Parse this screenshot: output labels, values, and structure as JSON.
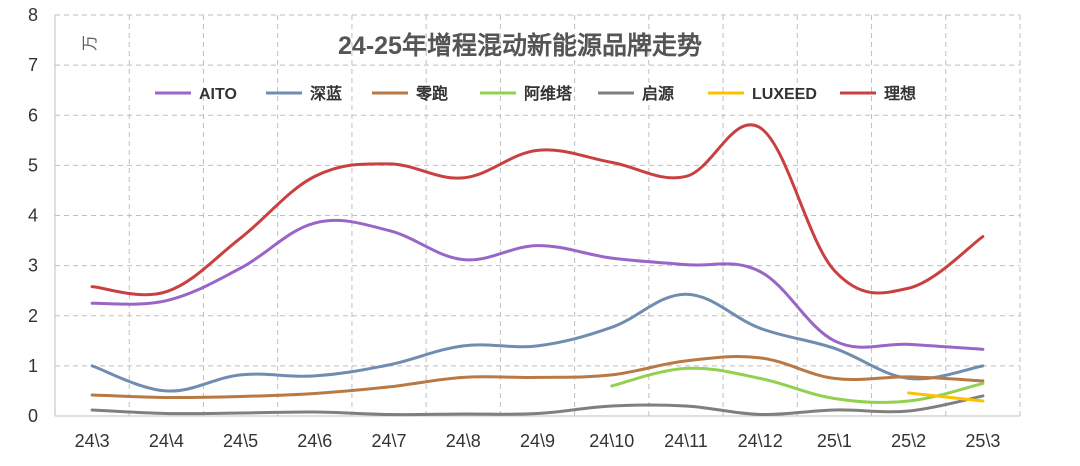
{
  "chart_data": {
    "type": "line",
    "title": "24-25年增程混动新能源品牌走势",
    "ylabel": "万",
    "ylim": [
      0,
      8
    ],
    "yticks": [
      "0",
      "1",
      "2",
      "3",
      "4",
      "5",
      "6",
      "7",
      "8"
    ],
    "grid": true,
    "legend_placement": "top-center",
    "categories": [
      "24\\3",
      "24\\4",
      "24\\5",
      "24\\6",
      "24\\7",
      "24\\8",
      "24\\9",
      "24\\10",
      "24\\11",
      "24\\12",
      "25\\1",
      "25\\2",
      "25\\3"
    ],
    "series": [
      {
        "name": "AITO",
        "color": "#9966c8",
        "values": [
          2.25,
          2.3,
          2.95,
          3.85,
          3.7,
          3.12,
          3.4,
          3.15,
          3.02,
          2.88,
          1.5,
          1.43,
          1.33
        ]
      },
      {
        "name": "深蓝",
        "color": "#6f8db0",
        "values": [
          1.0,
          0.5,
          0.82,
          0.8,
          1.02,
          1.4,
          1.4,
          1.77,
          2.43,
          1.75,
          1.35,
          0.75,
          1.0
        ]
      },
      {
        "name": "零跑",
        "color": "#b87945",
        "values": [
          0.42,
          0.37,
          0.39,
          0.45,
          0.58,
          0.77,
          0.77,
          0.82,
          1.1,
          1.16,
          0.75,
          0.78,
          0.7
        ]
      },
      {
        "name": "阿维塔",
        "color": "#92d050",
        "values": [
          null,
          null,
          null,
          null,
          null,
          null,
          null,
          0.6,
          0.95,
          0.75,
          0.35,
          0.3,
          0.65
        ]
      },
      {
        "name": "启源",
        "color": "#7f7f7f",
        "values": [
          0.12,
          0.05,
          0.06,
          0.08,
          0.03,
          0.04,
          0.05,
          0.2,
          0.2,
          0.03,
          0.12,
          0.1,
          0.4
        ]
      },
      {
        "name": "LUXEED",
        "color": "#ffc000",
        "values": [
          null,
          null,
          null,
          null,
          null,
          null,
          null,
          null,
          null,
          null,
          null,
          0.46,
          0.3
        ]
      },
      {
        "name": "理想",
        "color": "#c94040",
        "values": [
          2.58,
          2.48,
          3.55,
          4.78,
          5.03,
          4.75,
          5.3,
          5.06,
          4.78,
          5.75,
          2.9,
          2.55,
          3.58
        ]
      }
    ]
  }
}
